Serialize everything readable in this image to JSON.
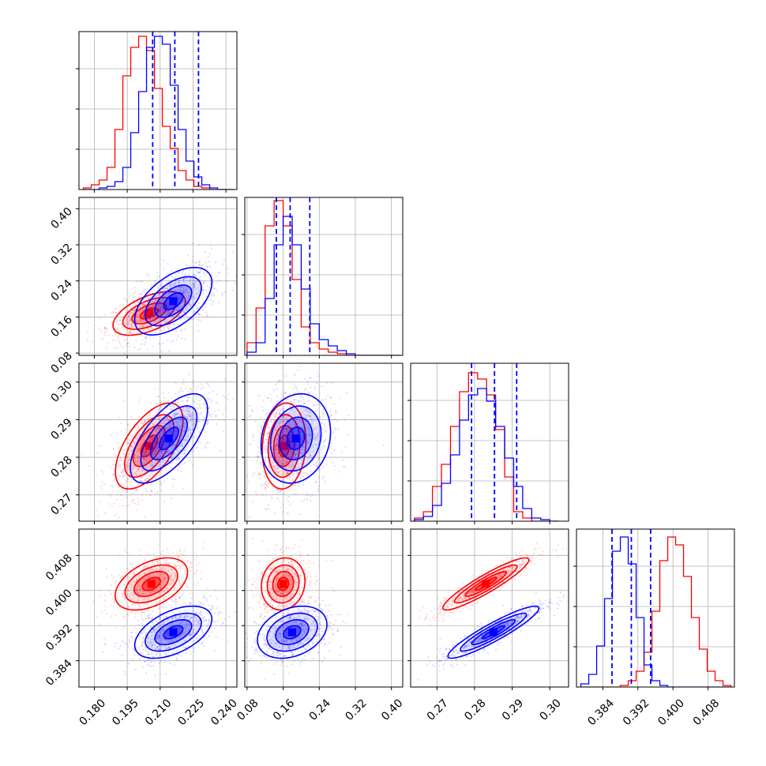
{
  "chart_data": {
    "type": "corner",
    "grid": true,
    "series": [
      {
        "color": "#ff0000"
      },
      {
        "color": "#0000ff"
      }
    ],
    "params": [
      {
        "range": [
          0.173,
          0.245
        ],
        "ticks": [
          "0.180",
          "0.195",
          "0.210",
          "0.225",
          "0.240"
        ],
        "tick_values": [
          0.18,
          0.195,
          0.21,
          0.225,
          0.24
        ]
      },
      {
        "range": [
          0.075,
          0.425
        ],
        "ticks": [
          "0.08",
          "0.16",
          "0.24",
          "0.32",
          "0.40"
        ],
        "tick_values": [
          0.08,
          0.16,
          0.24,
          0.32,
          0.4
        ]
      },
      {
        "range": [
          0.263,
          0.305
        ],
        "ticks": [
          "0.27",
          "0.28",
          "0.29",
          "0.30"
        ],
        "tick_values": [
          0.27,
          0.28,
          0.29,
          0.3
        ]
      },
      {
        "range": [
          0.378,
          0.414
        ],
        "ticks": [
          "0.384",
          "0.392",
          "0.400",
          "0.408"
        ],
        "tick_values": [
          0.384,
          0.392,
          0.4,
          0.408
        ]
      }
    ],
    "histograms": [
      {
        "bins": [
          0.175,
          0.1786,
          0.1822,
          0.1858,
          0.1894,
          0.193,
          0.1966,
          0.2002,
          0.2038,
          0.2074,
          0.211,
          0.2146,
          0.2182,
          0.2218,
          0.2254,
          0.229,
          0.2326,
          0.2362,
          0.2398,
          0.2434
        ],
        "red": [
          0.01,
          0.03,
          0.06,
          0.14,
          0.38,
          0.72,
          0.9,
          0.97,
          0.88,
          0.64,
          0.4,
          0.26,
          0.12,
          0.06,
          0.02,
          0.01,
          0.0,
          0.0,
          0.0
        ],
        "blue": [
          0.0,
          0.0,
          0.01,
          0.02,
          0.05,
          0.14,
          0.36,
          0.62,
          0.9,
          0.97,
          0.92,
          0.66,
          0.38,
          0.18,
          0.08,
          0.03,
          0.01,
          0.0,
          0.0
        ],
        "quantiles": [
          0.2066,
          0.2167,
          0.2275
        ]
      },
      {
        "bins": [
          0.08,
          0.1,
          0.12,
          0.14,
          0.16,
          0.18,
          0.2,
          0.22,
          0.24,
          0.26,
          0.28,
          0.3,
          0.32,
          0.34,
          0.36,
          0.38,
          0.4,
          0.42
        ],
        "red": [
          0.08,
          0.3,
          0.82,
          0.98,
          0.82,
          0.48,
          0.18,
          0.08,
          0.04,
          0.02,
          0.01,
          0.0,
          0.0,
          0.0,
          0.0,
          0.0,
          0.0
        ],
        "blue": [
          0.02,
          0.08,
          0.36,
          0.7,
          0.88,
          0.7,
          0.42,
          0.2,
          0.1,
          0.06,
          0.03,
          0.01,
          0.0,
          0.0,
          0.0,
          0.0,
          0.0
        ],
        "quantiles": [
          0.1449,
          0.1755,
          0.219
        ]
      },
      {
        "bins": [
          0.264,
          0.2664,
          0.2688,
          0.2712,
          0.2736,
          0.276,
          0.2784,
          0.2808,
          0.2832,
          0.2856,
          0.288,
          0.2904,
          0.2928,
          0.2952,
          0.2976,
          0.3,
          0.3024
        ],
        "red": [
          0.02,
          0.06,
          0.22,
          0.36,
          0.6,
          0.82,
          0.94,
          0.9,
          0.8,
          0.58,
          0.28,
          0.06,
          0.02,
          0.0,
          0.0,
          0.0
        ],
        "blue": [
          0.01,
          0.03,
          0.1,
          0.24,
          0.42,
          0.64,
          0.8,
          0.84,
          0.76,
          0.6,
          0.4,
          0.22,
          0.08,
          0.02,
          0.01,
          0.0
        ],
        "quantiles": [
          0.2792,
          0.2853,
          0.2912
        ]
      },
      {
        "bins": [
          0.379,
          0.3808,
          0.3826,
          0.3844,
          0.3862,
          0.388,
          0.3898,
          0.3916,
          0.3934,
          0.3952,
          0.397,
          0.3988,
          0.4006,
          0.4024,
          0.4042,
          0.406,
          0.4078,
          0.4096,
          0.4114,
          0.4132
        ],
        "red": [
          0.0,
          0.0,
          0.0,
          0.0,
          0.0,
          0.01,
          0.04,
          0.1,
          0.22,
          0.48,
          0.8,
          0.95,
          0.9,
          0.7,
          0.44,
          0.24,
          0.1,
          0.04,
          0.01
        ],
        "blue": [
          0.02,
          0.08,
          0.26,
          0.56,
          0.86,
          0.95,
          0.78,
          0.44,
          0.14,
          0.04,
          0.01,
          0.0,
          0.0,
          0.0,
          0.0,
          0.0,
          0.0,
          0.0,
          0.0
        ],
        "quantiles": [
          0.3861,
          0.3905,
          0.3949
        ]
      }
    ],
    "pair_stats": {
      "1_0": {
        "red": {
          "mx": 0.205,
          "my": 0.168,
          "sx": 0.0075,
          "sy": 0.022,
          "r": 0.55
        },
        "blue": {
          "mx": 0.216,
          "my": 0.195,
          "sx": 0.008,
          "sy": 0.034,
          "r": 0.55
        }
      },
      "2_0": {
        "red": {
          "mx": 0.205,
          "my": 0.283,
          "sx": 0.007,
          "sy": 0.0052,
          "r": 0.6
        },
        "blue": {
          "mx": 0.214,
          "my": 0.285,
          "sx": 0.008,
          "sy": 0.0054,
          "r": 0.65
        }
      },
      "2_1": {
        "red": {
          "mx": 0.162,
          "my": 0.283,
          "sx": 0.022,
          "sy": 0.0052,
          "r": 0.1
        },
        "blue": {
          "mx": 0.188,
          "my": 0.285,
          "sx": 0.035,
          "sy": 0.0054,
          "r": 0.15
        }
      },
      "3_0": {
        "red": {
          "mx": 0.206,
          "my": 0.4015,
          "sx": 0.0075,
          "sy": 0.0027,
          "r": 0.45
        },
        "blue": {
          "mx": 0.216,
          "my": 0.3905,
          "sx": 0.008,
          "sy": 0.0027,
          "r": 0.5
        }
      },
      "3_1": {
        "red": {
          "mx": 0.16,
          "my": 0.4015,
          "sx": 0.022,
          "sy": 0.0027,
          "r": 0.1
        },
        "blue": {
          "mx": 0.18,
          "my": 0.3905,
          "sx": 0.035,
          "sy": 0.0027,
          "r": 0.3
        }
      },
      "3_2": {
        "red": {
          "mx": 0.283,
          "my": 0.4015,
          "sx": 0.0052,
          "sy": 0.0027,
          "r": 0.92
        },
        "blue": {
          "mx": 0.285,
          "my": 0.3905,
          "sx": 0.0055,
          "sy": 0.0027,
          "r": 0.92
        }
      }
    }
  }
}
